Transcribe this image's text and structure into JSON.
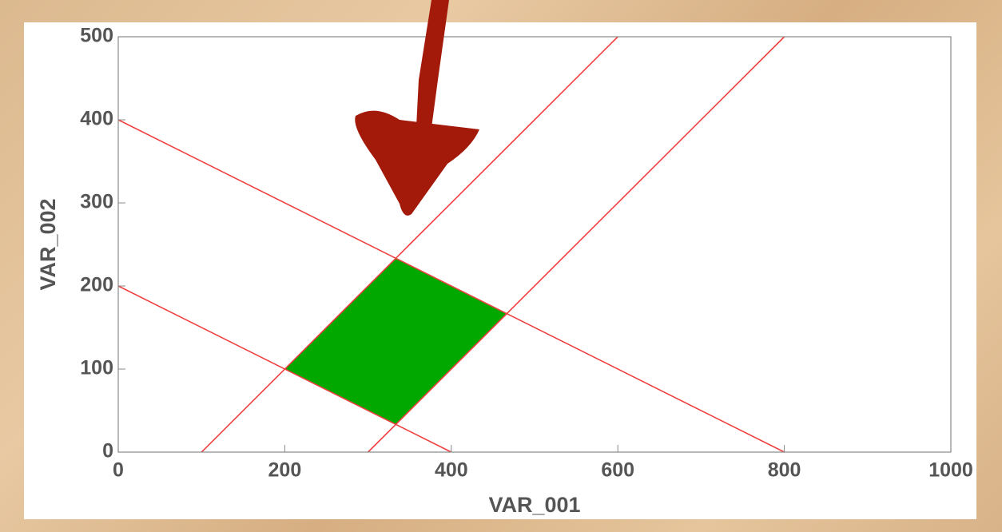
{
  "chart_data": {
    "type": "line",
    "xlabel": "VAR_001",
    "ylabel": "VAR_002",
    "xlim": [
      0,
      1000
    ],
    "ylim": [
      0,
      500
    ],
    "xticks": [
      0,
      200,
      400,
      600,
      800,
      1000
    ],
    "yticks": [
      0,
      100,
      200,
      300,
      400,
      500
    ],
    "series": [
      {
        "color": "#f04040",
        "x": [
          0,
          800
        ],
        "values": [
          400,
          0
        ]
      },
      {
        "color": "#f04040",
        "x": [
          0,
          400
        ],
        "values": [
          200,
          0
        ]
      },
      {
        "color": "#f04040",
        "x": [
          100,
          600
        ],
        "values": [
          0,
          500
        ]
      },
      {
        "color": "#f04040",
        "x": [
          300,
          800
        ],
        "values": [
          0,
          500
        ]
      }
    ],
    "region": {
      "color": "#00a800",
      "x": [
        200,
        333.3,
        466.7,
        333.3
      ],
      "values": [
        100,
        233.3,
        166.7,
        33.3
      ]
    }
  }
}
